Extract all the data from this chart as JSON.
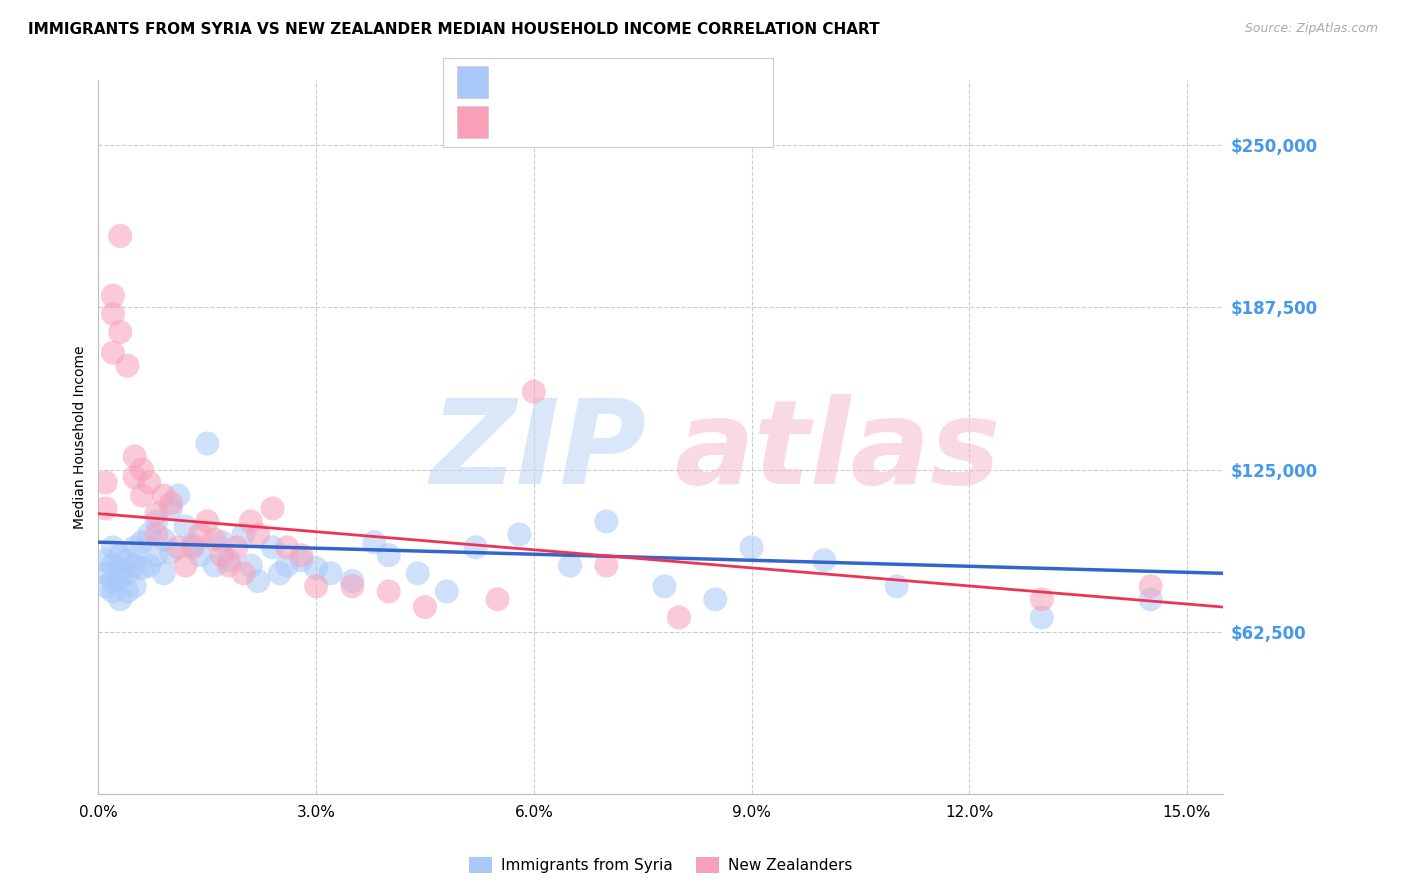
{
  "title": "IMMIGRANTS FROM SYRIA VS NEW ZEALANDER MEDIAN HOUSEHOLD INCOME CORRELATION CHART",
  "source": "Source: ZipAtlas.com",
  "ylabel": "Median Household Income",
  "y_tick_labels": [
    "$62,500",
    "$125,000",
    "$187,500",
    "$250,000"
  ],
  "y_tick_values": [
    62500,
    125000,
    187500,
    250000
  ],
  "ylim": [
    0,
    275000
  ],
  "xlim": [
    0.0,
    0.155
  ],
  "x_tick_labels": [
    "0.0%",
    "3.0%",
    "6.0%",
    "9.0%",
    "12.0%",
    "15.0%"
  ],
  "x_tick_values": [
    0.0,
    0.03,
    0.06,
    0.09,
    0.12,
    0.15
  ],
  "legend_label1": "Immigrants from Syria",
  "legend_label2": "New Zealanders",
  "color_blue": "#a8c8f8",
  "color_pink": "#f8a0b8",
  "color_blue_line": "#3366cc",
  "color_pink_line": "#ee3355",
  "color_ytick": "#4499ee",
  "color_r_value": "#3366cc",
  "color_r_label": "#333333",
  "background_color": "#ffffff",
  "grid_color": "#cccccc",
  "blue_scatter_x": [
    0.001,
    0.001,
    0.001,
    0.002,
    0.002,
    0.002,
    0.002,
    0.003,
    0.003,
    0.003,
    0.003,
    0.004,
    0.004,
    0.004,
    0.005,
    0.005,
    0.005,
    0.006,
    0.006,
    0.007,
    0.007,
    0.008,
    0.008,
    0.009,
    0.009,
    0.01,
    0.01,
    0.011,
    0.012,
    0.013,
    0.014,
    0.015,
    0.016,
    0.017,
    0.018,
    0.02,
    0.021,
    0.022,
    0.024,
    0.025,
    0.026,
    0.028,
    0.03,
    0.032,
    0.035,
    0.038,
    0.04,
    0.044,
    0.048,
    0.052,
    0.058,
    0.065,
    0.07,
    0.078,
    0.085,
    0.09,
    0.1,
    0.11,
    0.13,
    0.145
  ],
  "blue_scatter_y": [
    90000,
    85000,
    80000,
    95000,
    88000,
    82000,
    78000,
    92000,
    87000,
    83000,
    75000,
    90000,
    85000,
    78000,
    95000,
    88000,
    80000,
    97000,
    87000,
    100000,
    88000,
    105000,
    92000,
    98000,
    85000,
    110000,
    93000,
    115000,
    103000,
    96000,
    92000,
    135000,
    88000,
    97000,
    90000,
    100000,
    88000,
    82000,
    95000,
    85000,
    88000,
    90000,
    87000,
    85000,
    82000,
    97000,
    92000,
    85000,
    78000,
    95000,
    100000,
    88000,
    105000,
    80000,
    75000,
    95000,
    90000,
    80000,
    68000,
    75000
  ],
  "pink_scatter_x": [
    0.001,
    0.001,
    0.002,
    0.002,
    0.002,
    0.003,
    0.003,
    0.004,
    0.005,
    0.005,
    0.006,
    0.006,
    0.007,
    0.008,
    0.008,
    0.009,
    0.01,
    0.011,
    0.012,
    0.013,
    0.014,
    0.015,
    0.016,
    0.017,
    0.018,
    0.019,
    0.02,
    0.021,
    0.022,
    0.024,
    0.026,
    0.028,
    0.03,
    0.035,
    0.04,
    0.045,
    0.055,
    0.06,
    0.07,
    0.08,
    0.13,
    0.145
  ],
  "pink_scatter_y": [
    120000,
    110000,
    192000,
    185000,
    170000,
    215000,
    178000,
    165000,
    130000,
    122000,
    125000,
    115000,
    120000,
    108000,
    100000,
    115000,
    112000,
    95000,
    88000,
    95000,
    100000,
    105000,
    98000,
    92000,
    88000,
    95000,
    85000,
    105000,
    100000,
    110000,
    95000,
    92000,
    80000,
    80000,
    78000,
    72000,
    75000,
    155000,
    88000,
    68000,
    75000,
    80000
  ],
  "blue_trend_x": [
    0.0,
    0.155
  ],
  "blue_trend_y": [
    97000,
    85000
  ],
  "pink_trend_x": [
    0.0,
    0.155
  ],
  "pink_trend_y": [
    108000,
    72000
  ],
  "title_fontsize": 11
}
